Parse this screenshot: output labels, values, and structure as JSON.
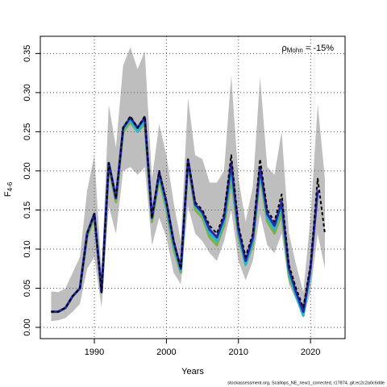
{
  "chart_data": {
    "type": "line",
    "xlabel": "Years",
    "ylabel": "F",
    "ylabel_sub": "4-6",
    "annotation": {
      "symbol": "ρ",
      "subscript": "Mohn",
      "text": " = -15%"
    },
    "footer": "stockassessment.org, Scallops_NE_new1_corrected, r17874, git:ec2c2a0c6dde",
    "x": [
      1984,
      1985,
      1986,
      1987,
      1988,
      1989,
      1990,
      1991,
      1992,
      1993,
      1994,
      1995,
      1996,
      1997,
      1998,
      1999,
      2000,
      2001,
      2002,
      2003,
      2004,
      2005,
      2006,
      2007,
      2008,
      2009,
      2010,
      2011,
      2012,
      2013,
      2014,
      2015,
      2016,
      2017,
      2018,
      2019,
      2020,
      2021,
      2022
    ],
    "ci_color": "#bebebe",
    "ci_upper": [
      0.046,
      0.045,
      0.05,
      0.07,
      0.09,
      0.175,
      0.22,
      0.07,
      0.285,
      0.23,
      0.335,
      0.358,
      0.33,
      0.353,
      0.19,
      0.26,
      0.22,
      0.16,
      0.11,
      0.293,
      0.22,
      0.215,
      0.185,
      0.185,
      0.2,
      0.322,
      0.19,
      0.135,
      0.18,
      0.32,
      0.205,
      0.195,
      0.25,
      0.12,
      0.08,
      0.045,
      0.14,
      0.285,
      0.19
    ],
    "ci_lower": [
      0.008,
      0.009,
      0.012,
      0.02,
      0.03,
      0.075,
      0.09,
      0.025,
      0.155,
      0.12,
      0.2,
      0.205,
      0.195,
      0.205,
      0.105,
      0.14,
      0.115,
      0.07,
      0.055,
      0.155,
      0.12,
      0.11,
      0.095,
      0.085,
      0.11,
      0.15,
      0.085,
      0.06,
      0.085,
      0.145,
      0.105,
      0.095,
      0.12,
      0.055,
      0.035,
      0.012,
      0.045,
      0.12,
      0.075
    ],
    "series": [
      {
        "color": "#7bb241",
        "values": [
          0.02,
          0.02,
          0.025,
          0.04,
          0.05,
          0.115,
          0.14,
          0.045,
          0.205,
          0.16,
          0.25,
          0.262,
          0.25,
          0.26,
          0.135,
          0.19,
          0.15,
          0.1,
          0.07,
          0.21,
          0.15,
          0.14,
          0.115,
          0.105,
          0.13,
          0.19,
          0.115,
          0.08,
          0.105,
          0.195,
          0.135,
          0.12,
          0.145,
          0.065,
          0.04,
          0.015,
          null,
          null,
          null
        ]
      },
      {
        "color": "#29b6d6",
        "values": [
          0.02,
          0.02,
          0.025,
          0.04,
          0.05,
          0.12,
          0.145,
          0.045,
          0.21,
          0.165,
          0.253,
          0.265,
          0.25,
          0.265,
          0.14,
          0.195,
          0.155,
          0.105,
          0.072,
          0.213,
          0.155,
          0.145,
          0.12,
          0.11,
          0.135,
          0.2,
          0.12,
          0.08,
          0.11,
          0.2,
          0.14,
          0.125,
          0.155,
          0.07,
          0.04,
          0.015,
          0.07,
          null,
          null
        ]
      },
      {
        "color": "#2929a8",
        "values": [
          0.02,
          0.02,
          0.025,
          0.04,
          0.05,
          0.12,
          0.145,
          0.045,
          0.21,
          0.165,
          0.255,
          0.268,
          0.255,
          0.268,
          0.14,
          0.198,
          0.16,
          0.11,
          0.075,
          0.214,
          0.157,
          0.147,
          0.125,
          0.115,
          0.14,
          0.21,
          0.125,
          0.085,
          0.115,
          0.205,
          0.145,
          0.13,
          0.16,
          0.075,
          0.045,
          0.02,
          0.075,
          0.175,
          null
        ]
      },
      {
        "color": "#000000",
        "dashed": true,
        "values": [
          0.02,
          0.02,
          0.025,
          0.04,
          0.05,
          0.12,
          0.145,
          0.045,
          0.21,
          0.165,
          0.255,
          0.27,
          0.255,
          0.27,
          0.14,
          0.2,
          0.16,
          0.11,
          0.075,
          0.215,
          0.16,
          0.15,
          0.13,
          0.12,
          0.145,
          0.22,
          0.13,
          0.09,
          0.12,
          0.215,
          0.15,
          0.135,
          0.17,
          0.08,
          0.05,
          0.025,
          0.08,
          0.19,
          0.12
        ]
      }
    ],
    "xlim": [
      1982.5,
      2024.8
    ],
    "ylim": [
      -0.0144,
      0.372
    ],
    "xticks": [
      1990,
      2000,
      2010,
      2020
    ],
    "yticks": [
      {
        "value": 0,
        "label": "0.00"
      },
      {
        "value": 0.05,
        "label": "0.05"
      },
      {
        "value": 0.1,
        "label": "0.10"
      },
      {
        "value": 0.15,
        "label": "0.15"
      },
      {
        "value": 0.2,
        "label": "0.20"
      },
      {
        "value": 0.25,
        "label": "0.25"
      },
      {
        "value": 0.3,
        "label": "0.30"
      },
      {
        "value": 0.35,
        "label": "0.35"
      }
    ],
    "grid": true
  }
}
